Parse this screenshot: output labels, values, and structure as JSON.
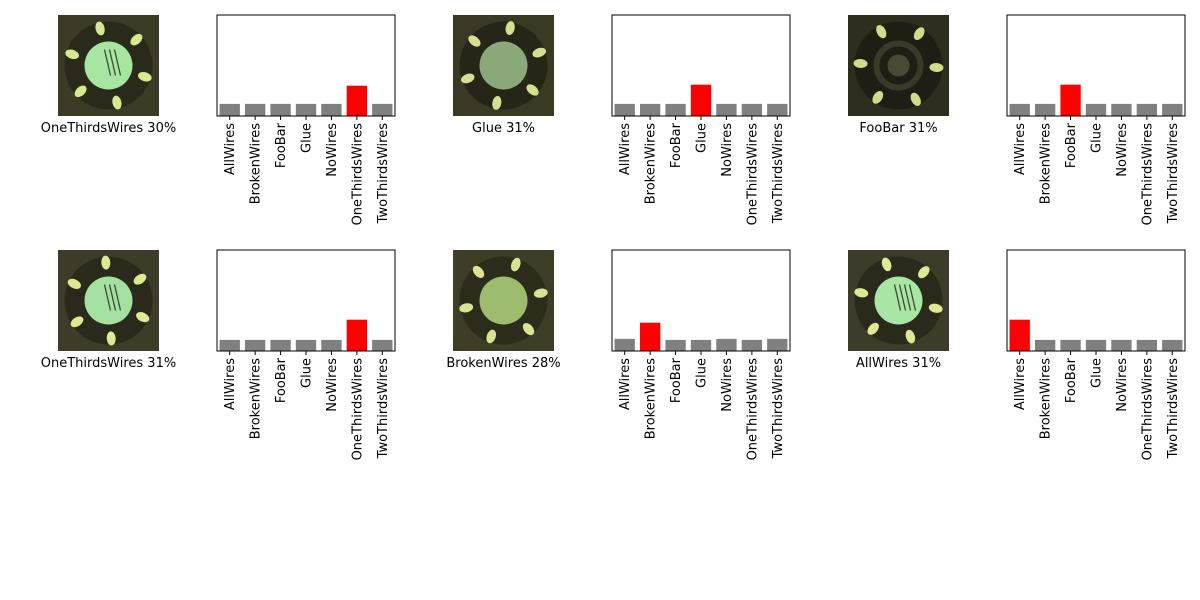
{
  "chart_data": [
    {
      "type": "bar",
      "image_label": "OneThirdsWires 30%",
      "categories": [
        "AllWires",
        "BrokenWires",
        "FooBar",
        "Glue",
        "NoWires",
        "OneThirdsWires",
        "TwoThirdsWires"
      ],
      "values": [
        0.12,
        0.12,
        0.12,
        0.12,
        0.12,
        0.3,
        0.12
      ],
      "ylim": [
        0,
        1
      ],
      "highlight_index": 5,
      "colors": {
        "bar": "#808080",
        "highlight": "#ff0000"
      },
      "thumbnail": {
        "background": "#3c3c26",
        "ring": "#2a2a1a",
        "center": "#a7e6a0",
        "tabs": "#d8e88e",
        "center_size": "large",
        "wires": 3
      }
    },
    {
      "type": "bar",
      "image_label": "Glue 31%",
      "categories": [
        "AllWires",
        "BrokenWires",
        "FooBar",
        "Glue",
        "NoWires",
        "OneThirdsWires",
        "TwoThirdsWires"
      ],
      "values": [
        0.12,
        0.12,
        0.12,
        0.31,
        0.12,
        0.12,
        0.12
      ],
      "ylim": [
        0,
        1
      ],
      "highlight_index": 3,
      "colors": {
        "bar": "#808080",
        "highlight": "#ff0000"
      },
      "thumbnail": {
        "background": "#3a3a24",
        "ring": "#262618",
        "center": "#8aa87a",
        "tabs": "#d4e090",
        "center_size": "large",
        "wires": 0
      }
    },
    {
      "type": "bar",
      "image_label": "FooBar 31%",
      "categories": [
        "AllWires",
        "BrokenWires",
        "FooBar",
        "Glue",
        "NoWires",
        "OneThirdsWires",
        "TwoThirdsWires"
      ],
      "values": [
        0.12,
        0.12,
        0.31,
        0.12,
        0.12,
        0.12,
        0.12
      ],
      "ylim": [
        0,
        1
      ],
      "highlight_index": 2,
      "colors": {
        "bar": "#808080",
        "highlight": "#ff0000"
      },
      "thumbnail": {
        "background": "#2e2e1e",
        "ring": "#1e1e14",
        "center": "#4a4a34",
        "tabs": "#d0dc8a",
        "center_size": "small",
        "wires": 0
      }
    },
    {
      "type": "bar",
      "image_label": "OneThirdsWires 31%",
      "categories": [
        "AllWires",
        "BrokenWires",
        "FooBar",
        "Glue",
        "NoWires",
        "OneThirdsWires",
        "TwoThirdsWires"
      ],
      "values": [
        0.11,
        0.11,
        0.11,
        0.11,
        0.11,
        0.31,
        0.11
      ],
      "ylim": [
        0,
        1
      ],
      "highlight_index": 5,
      "colors": {
        "bar": "#808080",
        "highlight": "#ff0000"
      },
      "thumbnail": {
        "background": "#3c3c28",
        "ring": "#2a2a1c",
        "center": "#a4e0a0",
        "tabs": "#dcea90",
        "center_size": "large",
        "wires": 3
      }
    },
    {
      "type": "bar",
      "image_label": "BrokenWires 28%",
      "categories": [
        "AllWires",
        "BrokenWires",
        "FooBar",
        "Glue",
        "NoWires",
        "OneThirdsWires",
        "TwoThirdsWires"
      ],
      "values": [
        0.12,
        0.28,
        0.11,
        0.11,
        0.12,
        0.11,
        0.12
      ],
      "ylim": [
        0,
        1
      ],
      "highlight_index": 1,
      "colors": {
        "bar": "#808080",
        "highlight": "#ff0000"
      },
      "thumbnail": {
        "background": "#3e3e26",
        "ring": "#2c2c1a",
        "center": "#9ebc70",
        "tabs": "#d8e492",
        "center_size": "large",
        "wires": 0
      }
    },
    {
      "type": "bar",
      "image_label": "AllWires 31%",
      "categories": [
        "AllWires",
        "BrokenWires",
        "FooBar",
        "Glue",
        "NoWires",
        "OneThirdsWires",
        "TwoThirdsWires"
      ],
      "values": [
        0.31,
        0.11,
        0.11,
        0.11,
        0.11,
        0.11,
        0.11
      ],
      "ylim": [
        0,
        1
      ],
      "highlight_index": 0,
      "colors": {
        "bar": "#808080",
        "highlight": "#ff0000"
      },
      "thumbnail": {
        "background": "#3c3c28",
        "ring": "#2a2a1c",
        "center": "#a8e6a4",
        "tabs": "#dcea92",
        "center_size": "large",
        "wires": 4
      }
    }
  ]
}
